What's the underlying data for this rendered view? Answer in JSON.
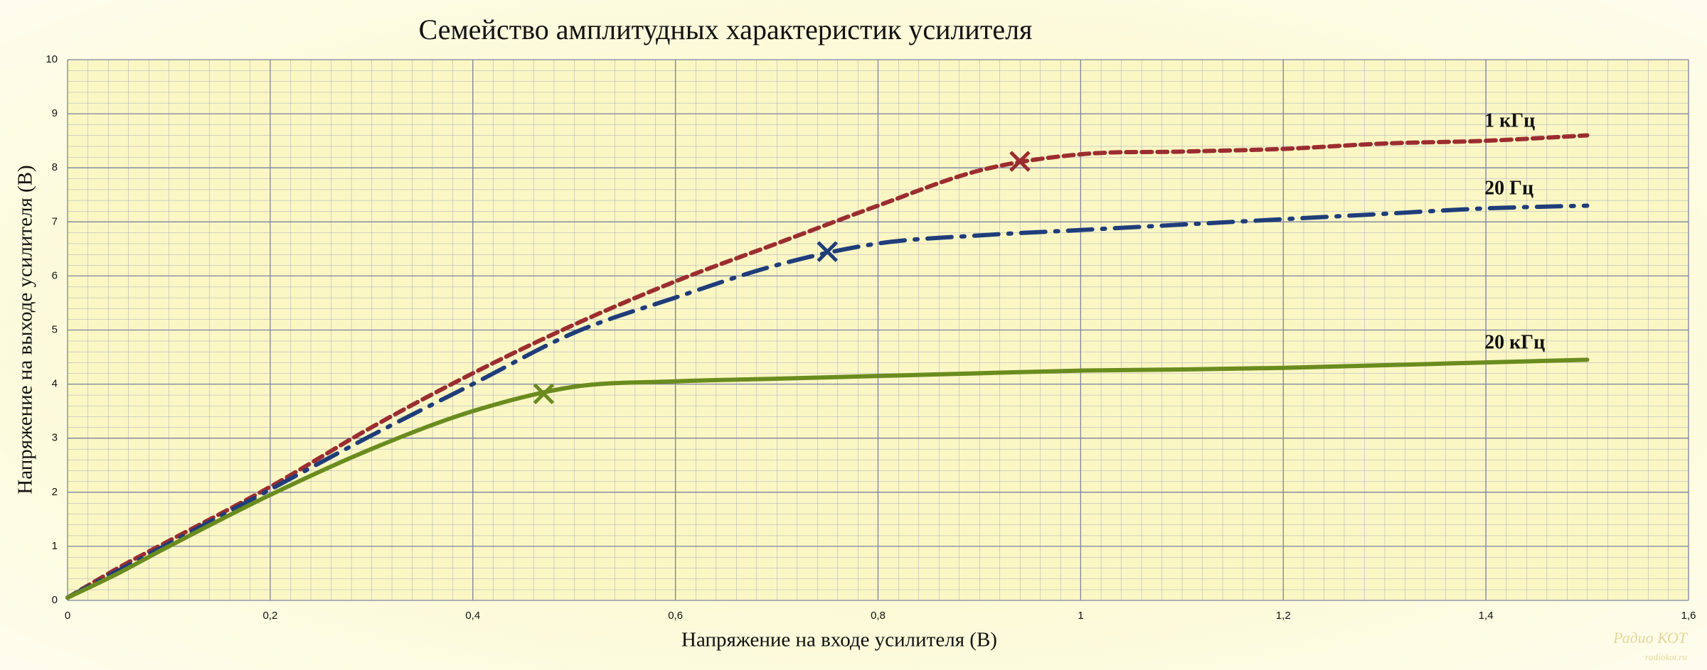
{
  "chart_data": {
    "type": "line",
    "title": "Семейство амплитудных характеристик усилителя",
    "xlabel": "Напряжение на входе усилителя (В)",
    "ylabel": "Напряжение на выходе усилителя (В)",
    "x": [
      0,
      0.05,
      0.1,
      0.2,
      0.3,
      0.4,
      0.5,
      0.6,
      0.7,
      0.8,
      0.9,
      1.0,
      1.1,
      1.2,
      1.3,
      1.4,
      1.5
    ],
    "series": [
      {
        "name": "1 кГц",
        "color": "#9b2d30",
        "dash": "dashed",
        "values": [
          0.05,
          0.6,
          1.1,
          2.1,
          3.2,
          4.2,
          5.1,
          5.9,
          6.6,
          7.3,
          7.95,
          8.25,
          8.3,
          8.35,
          8.45,
          8.5,
          8.6
        ],
        "cross": [
          0.94,
          8.12
        ]
      },
      {
        "name": "20 Гц",
        "color": "#1f3d7a",
        "dash": "dashdot",
        "values": [
          0.05,
          0.55,
          1.05,
          2.05,
          3.05,
          4.0,
          4.95,
          5.6,
          6.2,
          6.6,
          6.75,
          6.85,
          6.95,
          7.05,
          7.15,
          7.25,
          7.3
        ],
        "cross": [
          0.75,
          6.45
        ]
      },
      {
        "name": "20 кГц",
        "color": "#6a8c1f",
        "dash": "solid",
        "values": [
          0.05,
          0.5,
          1.0,
          1.95,
          2.8,
          3.5,
          3.95,
          4.05,
          4.1,
          4.15,
          4.2,
          4.25,
          4.27,
          4.3,
          4.35,
          4.4,
          4.45
        ],
        "cross": [
          0.47,
          3.82
        ]
      }
    ],
    "xlim": [
      0,
      1.6
    ],
    "ylim": [
      0,
      10
    ],
    "xticks": [
      0,
      {
        "value": 0.2,
        "label": "0,2"
      },
      {
        "value": 0.4,
        "label": "0,4"
      },
      {
        "value": 0.6,
        "label": "0,6"
      },
      {
        "value": 0.8,
        "label": "0,8"
      },
      1,
      {
        "value": 1.2,
        "label": "1,2"
      },
      {
        "value": 1.4,
        "label": "1,4"
      },
      {
        "value": 1.6,
        "label": "1,6"
      }
    ],
    "yticks": [
      0,
      1,
      2,
      3,
      4,
      5,
      6,
      7,
      8,
      9,
      10
    ],
    "grid": true,
    "watermark": [
      "Радио КОТ",
      "radiokot.ru"
    ]
  }
}
